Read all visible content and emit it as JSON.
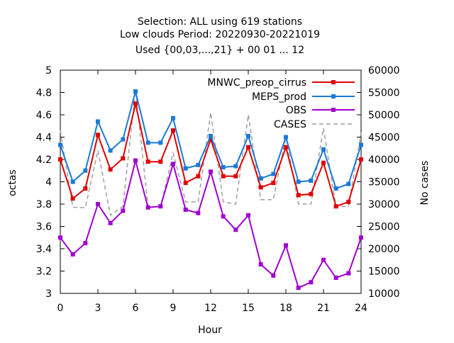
{
  "chart_data": {
    "type": "line",
    "title_lines": [
      "Selection: ALL using   619 stations",
      "Low clouds   Period: 20220930-20221019",
      "Used {00,03,...,21} + 00 01 ... 12"
    ],
    "xlabel": "Hour",
    "ylabel": "octas",
    "y2label": "No cases",
    "xlim": [
      0,
      24
    ],
    "ylim": [
      3,
      5
    ],
    "y2lim": [
      10000,
      60000
    ],
    "x_ticks": [
      0,
      3,
      6,
      9,
      12,
      15,
      18,
      21,
      24
    ],
    "y_ticks": [
      "3",
      "3.2",
      "3.4",
      "3.6",
      "3.8",
      "4",
      "4.2",
      "4.4",
      "4.6",
      "4.8",
      "5"
    ],
    "y2_ticks": [
      "10000",
      "15000",
      "20000",
      "25000",
      "30000",
      "35000",
      "40000",
      "45000",
      "50000",
      "55000",
      "60000"
    ],
    "grid": false,
    "legend_position": "top-right",
    "x": [
      0,
      1,
      2,
      3,
      4,
      5,
      6,
      7,
      8,
      9,
      10,
      11,
      12,
      13,
      14,
      15,
      16,
      17,
      18,
      19,
      20,
      21,
      22,
      23,
      24
    ],
    "series": [
      {
        "name": "MNWC_preop_cirrus",
        "color": "#e00000",
        "axis": "y1",
        "style": "line-points",
        "values": [
          4.2,
          3.85,
          3.94,
          4.42,
          4.11,
          4.21,
          4.7,
          4.18,
          4.18,
          4.46,
          3.99,
          4.05,
          4.38,
          4.05,
          4.05,
          4.31,
          3.95,
          3.99,
          4.31,
          3.88,
          3.89,
          4.17,
          3.78,
          3.82,
          4.2
        ]
      },
      {
        "name": "MEPS_prod",
        "color": "#1a7ad6",
        "axis": "y1",
        "style": "line-points",
        "values": [
          4.33,
          4.0,
          4.1,
          4.54,
          4.28,
          4.38,
          4.81,
          4.35,
          4.35,
          4.57,
          4.12,
          4.15,
          4.41,
          4.13,
          4.14,
          4.41,
          4.03,
          4.07,
          4.4,
          4.0,
          4.01,
          4.29,
          3.94,
          3.98,
          4.33
        ]
      },
      {
        "name": "OBS",
        "color": "#a000d0",
        "axis": "y1",
        "style": "line-points",
        "values": [
          3.5,
          3.35,
          3.45,
          3.8,
          3.63,
          3.74,
          4.19,
          3.77,
          3.78,
          4.16,
          3.75,
          3.72,
          4.09,
          3.69,
          3.57,
          3.7,
          3.26,
          3.16,
          3.43,
          3.05,
          3.1,
          3.3,
          3.14,
          3.18,
          3.5
        ]
      },
      {
        "name": "CASES",
        "color": "#a0a0a0",
        "axis": "y2",
        "style": "dashed",
        "values": [
          46500,
          29300,
          29200,
          42000,
          27500,
          29500,
          55500,
          29500,
          29300,
          41500,
          30500,
          30500,
          50500,
          30500,
          30000,
          50000,
          31000,
          31000,
          45000,
          30000,
          30000,
          47000,
          29400,
          29500,
          46000
        ]
      }
    ]
  }
}
